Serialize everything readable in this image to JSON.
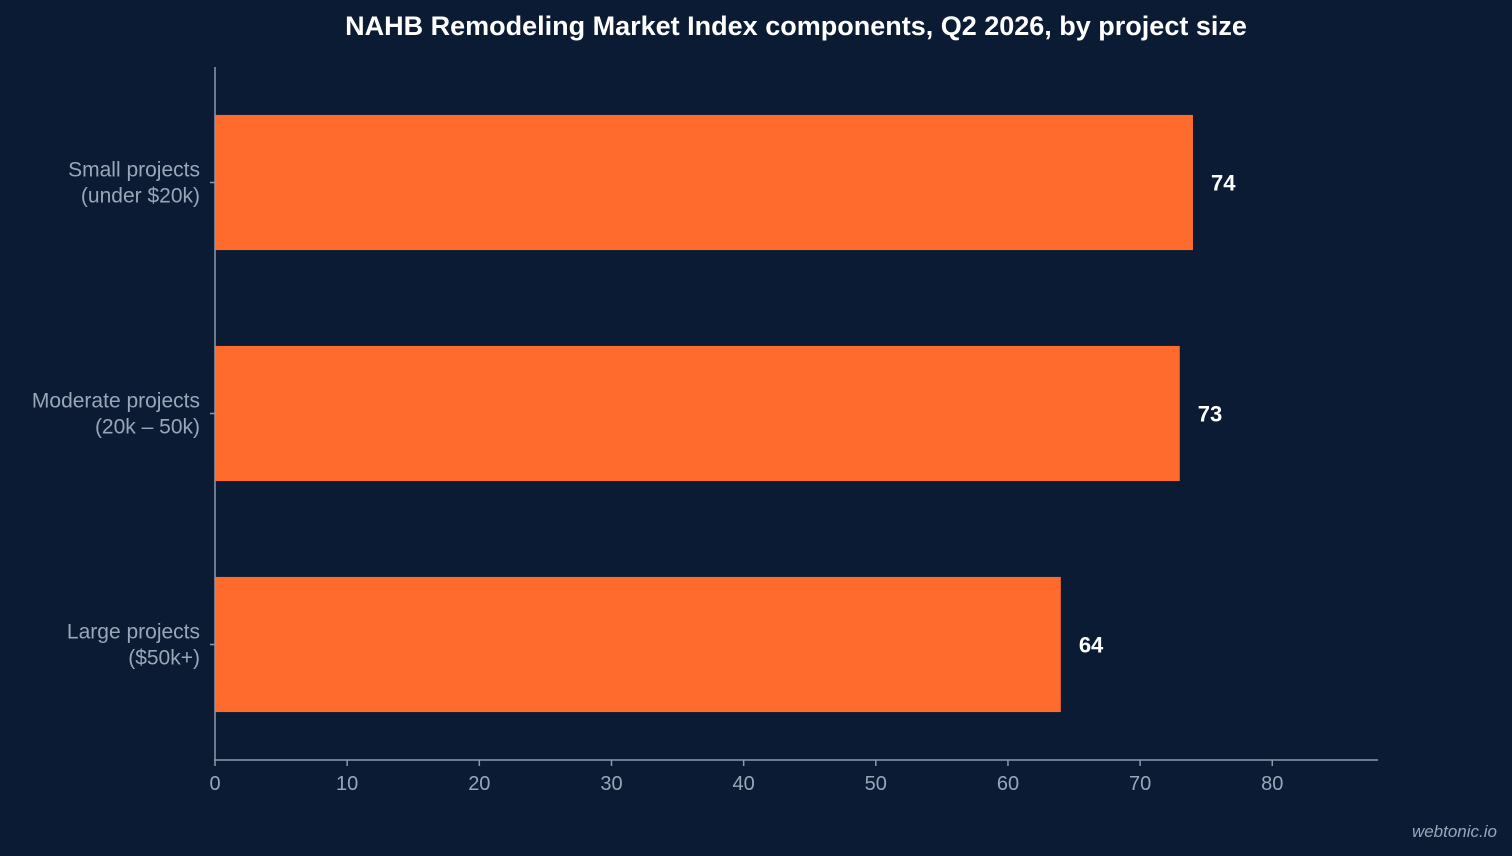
{
  "chart_data": {
    "type": "bar",
    "orientation": "horizontal",
    "title": "NAHB Remodeling Market Index components, Q2 2026, by project size",
    "categories": [
      [
        "Small projects",
        "(under $20k)"
      ],
      [
        "Moderate projects",
        "(20k – 50k)"
      ],
      [
        "Large projects",
        "($50k+)"
      ]
    ],
    "values": [
      74,
      73,
      64
    ],
    "value_labels": [
      "74",
      "73",
      "64"
    ],
    "xlim": [
      0,
      88
    ],
    "x_ticks": [
      0,
      10,
      20,
      30,
      40,
      50,
      60,
      70,
      80
    ],
    "x_tick_labels": [
      "0",
      "10",
      "20",
      "30",
      "40",
      "50",
      "60",
      "70",
      "80"
    ],
    "xlabel": "",
    "ylabel": "",
    "grid": false,
    "colors": {
      "bar": "#ff6b2c",
      "background": "#0b1b34",
      "axis": "#8d99ab",
      "text": "#9aa6b8",
      "title": "#ffffff"
    }
  },
  "watermark": "webtonic.io"
}
